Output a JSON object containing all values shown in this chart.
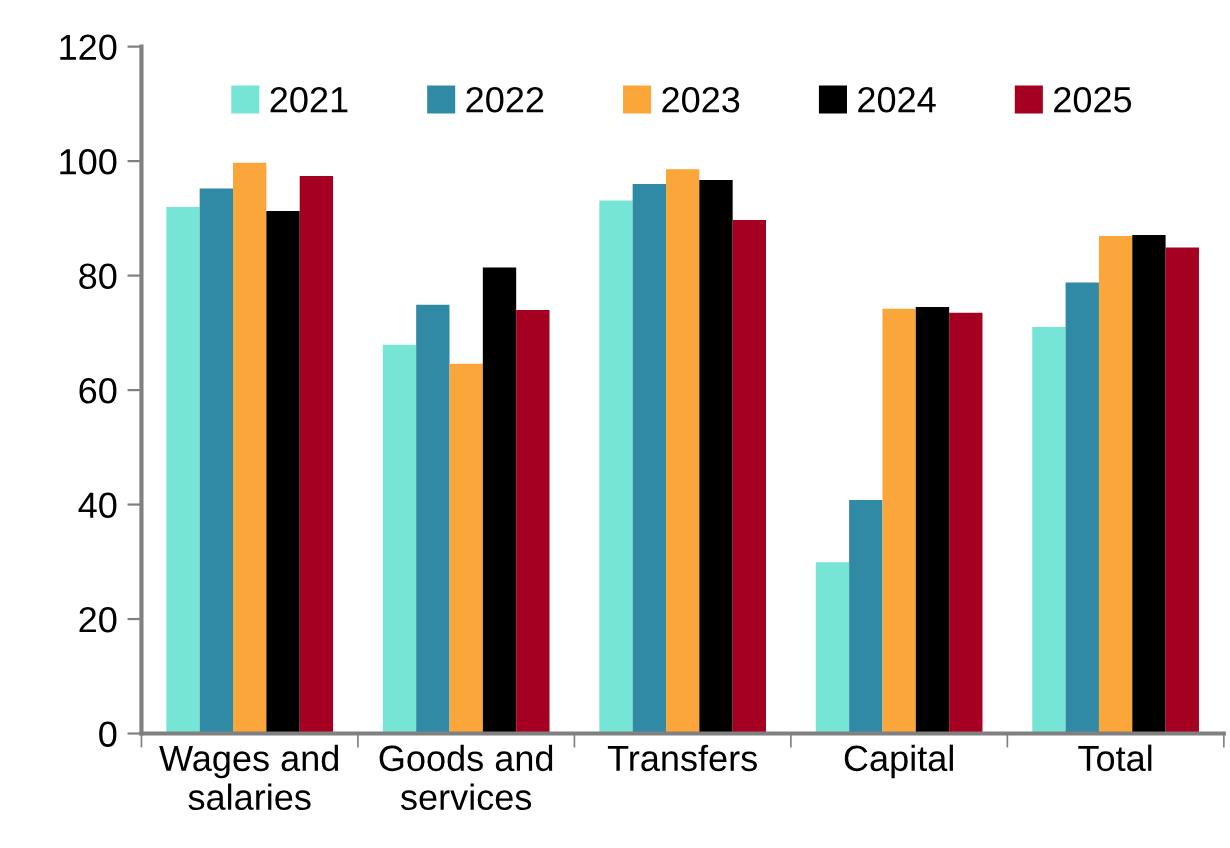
{
  "chart_data": {
    "type": "bar",
    "categories": [
      "Wages and\nsalaries",
      "Goods and\nservices",
      "Transfers",
      "Capital",
      "Total"
    ],
    "series": [
      {
        "name": "2021",
        "color": "#76e5d6",
        "values": [
          92.0,
          67.9,
          93.1,
          29.9,
          71.0
        ]
      },
      {
        "name": "2022",
        "color": "#318aa5",
        "values": [
          95.2,
          74.9,
          96.0,
          40.8,
          78.8
        ]
      },
      {
        "name": "2023",
        "color": "#fba63a",
        "values": [
          99.7,
          64.6,
          98.6,
          74.2,
          86.9
        ]
      },
      {
        "name": "2024",
        "color": "#000000",
        "values": [
          91.3,
          81.4,
          96.7,
          74.5,
          87.1
        ]
      },
      {
        "name": "2025",
        "color": "#a50021",
        "values": [
          97.4,
          74.0,
          89.7,
          73.5,
          84.9
        ]
      }
    ],
    "ylim": [
      0,
      120
    ],
    "yticks": [
      0,
      20,
      40,
      60,
      80,
      100,
      120
    ],
    "grid": false,
    "legend": "top"
  }
}
